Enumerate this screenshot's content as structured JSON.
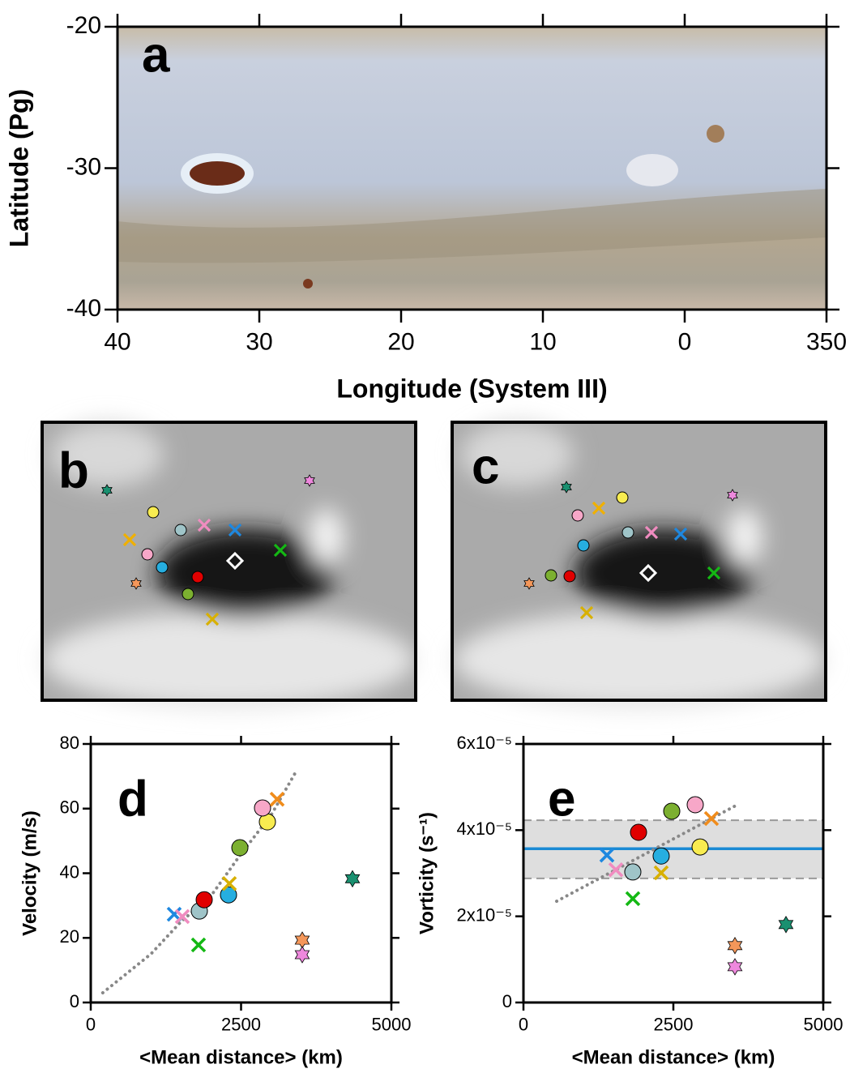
{
  "chart_data": [
    {
      "type": "image",
      "label": "a",
      "xlabel": "Longitude (System III)",
      "ylabel": "Latitude (Pg)",
      "xlim": [
        40,
        -10
      ],
      "ylim": [
        -40,
        -20
      ],
      "xticks": [
        40,
        30,
        20,
        10,
        0,
        {
          "value": -10,
          "label": "350"
        }
      ],
      "yticks": [
        -20,
        -30,
        -40
      ]
    },
    {
      "type": "image",
      "label": "b"
    },
    {
      "type": "image",
      "label": "c"
    },
    {
      "type": "scatter",
      "label": "d",
      "xlabel": "<Mean distance> (km)",
      "ylabel": "Velocity (m/s)",
      "xlim": [
        0,
        5000
      ],
      "ylim": [
        0,
        80
      ],
      "xticks": [
        0,
        2500,
        5000
      ],
      "yticks": [
        0,
        20,
        40,
        60,
        80
      ],
      "points": [
        {
          "marker": "x",
          "color": "#1e88e0",
          "x": 1388,
          "y": 27.3
        },
        {
          "marker": "x",
          "color": "#f08cc0",
          "x": 1523,
          "y": 26.6
        },
        {
          "marker": "circle",
          "color": "#9fc4c8",
          "x": 1806,
          "y": 28.3
        },
        {
          "marker": "circle",
          "color": "#e00000",
          "x": 1887,
          "y": 31.8
        },
        {
          "marker": "x",
          "color": "#14b814",
          "x": 1792,
          "y": 17.8
        },
        {
          "marker": "circle",
          "color": "#26aee0",
          "x": 2291,
          "y": 33.3
        },
        {
          "marker": "x",
          "color": "#d8b000",
          "x": 2305,
          "y": 36.8
        },
        {
          "marker": "circle",
          "color": "#7cb030",
          "x": 2480,
          "y": 47.9
        },
        {
          "marker": "circle",
          "color": "#f8ec50",
          "x": 2938,
          "y": 55.9
        },
        {
          "marker": "circle",
          "color": "#f7a7c8",
          "x": 2857,
          "y": 60.2
        },
        {
          "marker": "x",
          "color": "#f08c1c",
          "x": 3100,
          "y": 62.9
        },
        {
          "marker": "star",
          "color": "#f4975a",
          "x": 3517,
          "y": 19.3
        },
        {
          "marker": "star",
          "color": "#ee88dd",
          "x": 3517,
          "y": 14.8
        },
        {
          "marker": "star",
          "color": "#1a9070",
          "x": 4353,
          "y": 38.3
        }
      ],
      "fit": {
        "x": [
          200,
          1000,
          1500,
          2000,
          2500,
          3000,
          3400
        ],
        "y": [
          3,
          15,
          25,
          33,
          46,
          58,
          71
        ]
      }
    },
    {
      "type": "scatter",
      "label": "e",
      "xlabel": "<Mean distance> (km)",
      "ylabel": "Vorticity (s⁻¹)",
      "xlim": [
        0,
        5000
      ],
      "ylim": [
        0,
        6e-05
      ],
      "xticks": [
        0,
        2500,
        5000
      ],
      "yticks": [
        0,
        {
          "value": 2e-05,
          "label": "2x10⁻⁵"
        },
        {
          "value": 4e-05,
          "label": "4x10⁻⁵"
        },
        {
          "value": 6e-05,
          "label": "6x10⁻⁵"
        }
      ],
      "mean": 3.57e-05,
      "band": [
        2.88e-05,
        4.23e-05
      ],
      "points": [
        {
          "marker": "x",
          "color": "#1e88e0",
          "x": 1392,
          "y": 3.42e-05
        },
        {
          "marker": "x",
          "color": "#f08cc0",
          "x": 1541,
          "y": 3.08e-05
        },
        {
          "marker": "circle",
          "color": "#9fc4c8",
          "x": 1824,
          "y": 3.03e-05
        },
        {
          "marker": "x",
          "color": "#14b814",
          "x": 1824,
          "y": 2.41e-05
        },
        {
          "marker": "circle",
          "color": "#e00000",
          "x": 1919,
          "y": 3.95e-05
        },
        {
          "marker": "circle",
          "color": "#26aee0",
          "x": 2297,
          "y": 3.4e-05
        },
        {
          "marker": "x",
          "color": "#d8b000",
          "x": 2297,
          "y": 3.01e-05
        },
        {
          "marker": "circle",
          "color": "#7cb030",
          "x": 2473,
          "y": 4.44e-05
        },
        {
          "marker": "circle",
          "color": "#f7a7c8",
          "x": 2865,
          "y": 4.59e-05
        },
        {
          "marker": "circle",
          "color": "#f8ec50",
          "x": 2946,
          "y": 3.61e-05
        },
        {
          "marker": "x",
          "color": "#f08c1c",
          "x": 3135,
          "y": 4.27e-05
        },
        {
          "marker": "star",
          "color": "#f4975a",
          "x": 3527,
          "y": 1.32e-05
        },
        {
          "marker": "star",
          "color": "#ee88dd",
          "x": 3527,
          "y": 8.3e-06
        },
        {
          "marker": "star",
          "color": "#1a9070",
          "x": 4378,
          "y": 1.81e-05
        }
      ],
      "fit": {
        "x": [
          554,
          3595
        ],
        "y": [
          2.35e-05,
          4.61e-05
        ]
      }
    }
  ]
}
